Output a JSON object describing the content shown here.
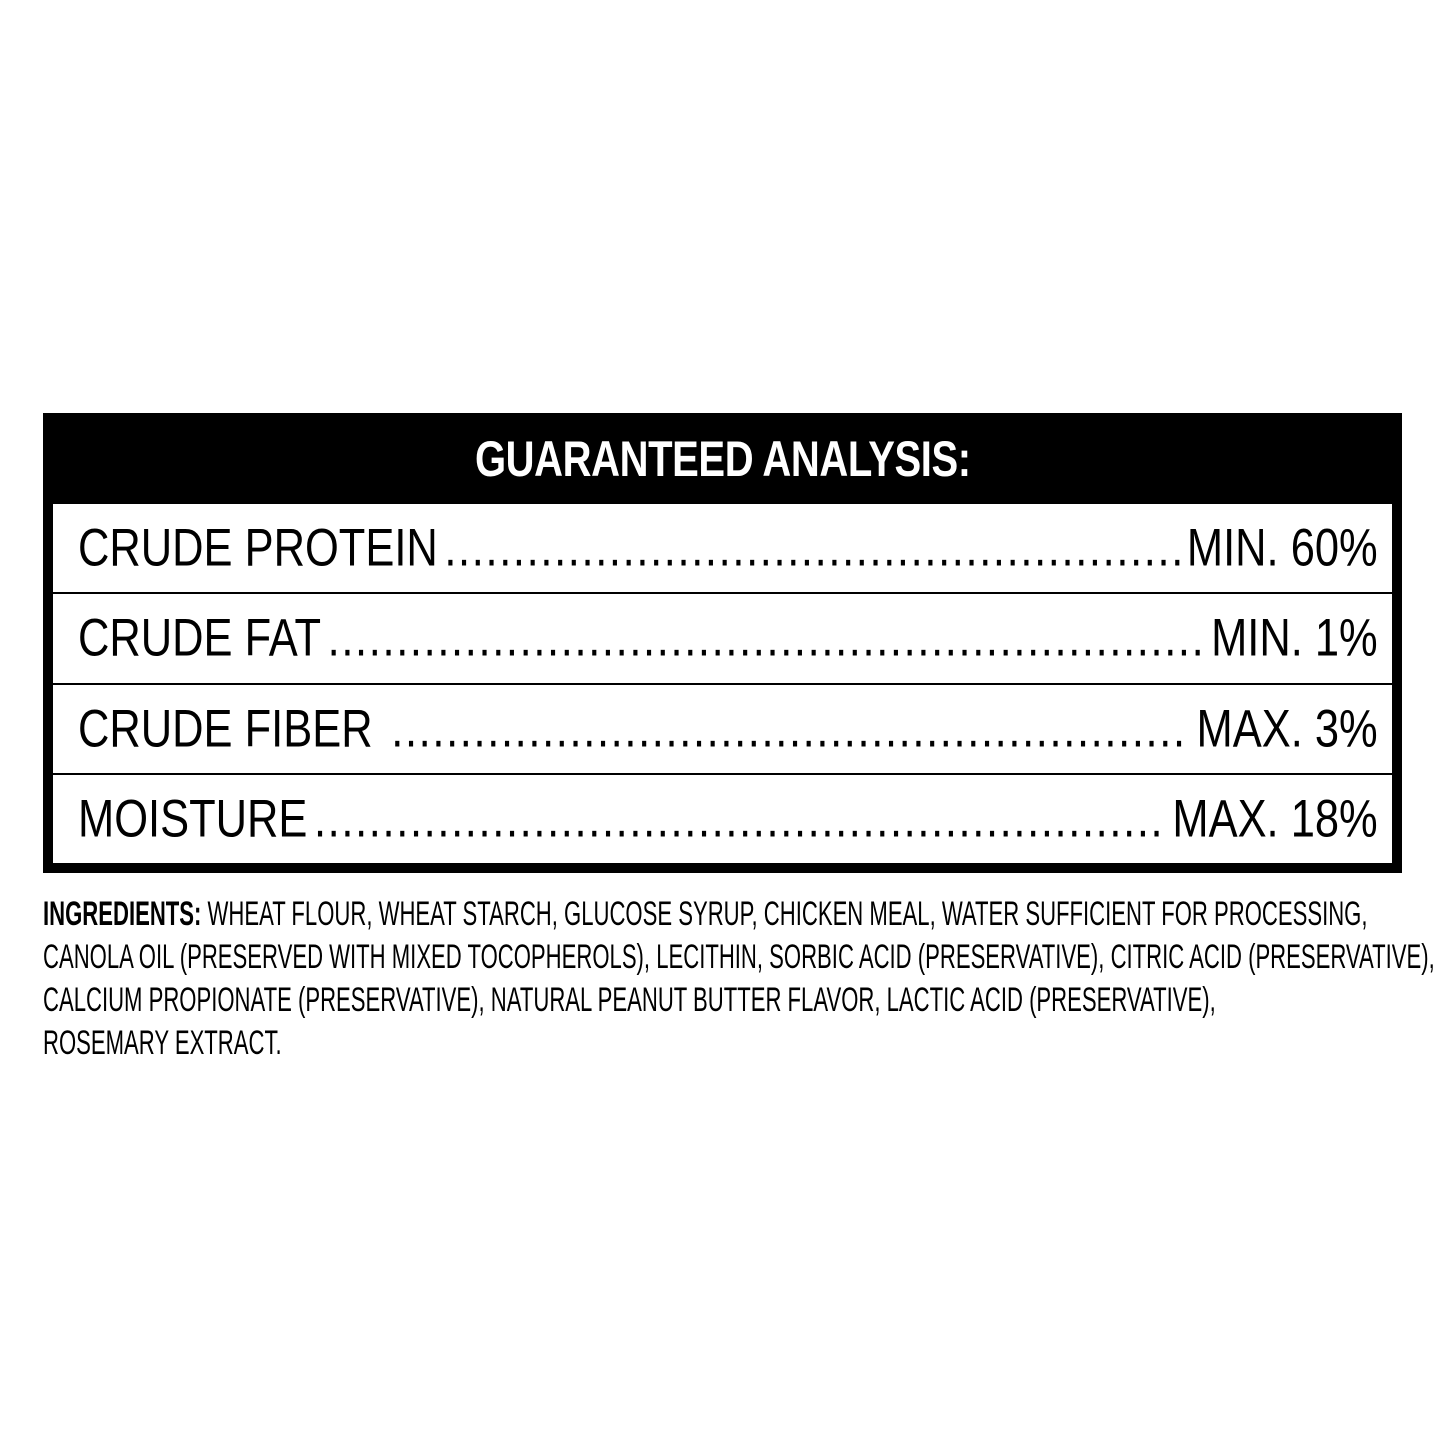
{
  "analysis": {
    "title": "GUARANTEED ANALYSIS:",
    "rows": [
      {
        "label": "CRUDE PROTEIN",
        "value": "MIN. 60%"
      },
      {
        "label": "CRUDE FAT",
        "value": "MIN. 1%"
      },
      {
        "label": "CRUDE FIBER ",
        "value": "MAX. 3%"
      },
      {
        "label": "MOISTURE",
        "value": "MAX. 18%"
      }
    ]
  },
  "ingredients": {
    "heading": "INGREDIENTS:",
    "lines": [
      " WHEAT FLOUR, WHEAT STARCH, GLUCOSE SYRUP, CHICKEN MEAL, WATER SUFFICIENT FOR PROCESSING,",
      "CANOLA OIL (PRESERVED WITH MIXED TOCOPHEROLS), LECITHIN, SORBIC ACID (PRESERVATIVE), CITRIC ACID (PRESERVATIVE),",
      "CALCIUM PROPIONATE (PRESERVATIVE), NATURAL PEANUT BUTTER FLAVOR, LACTIC ACID (PRESERVATIVE),",
      "ROSEMARY EXTRACT."
    ]
  }
}
